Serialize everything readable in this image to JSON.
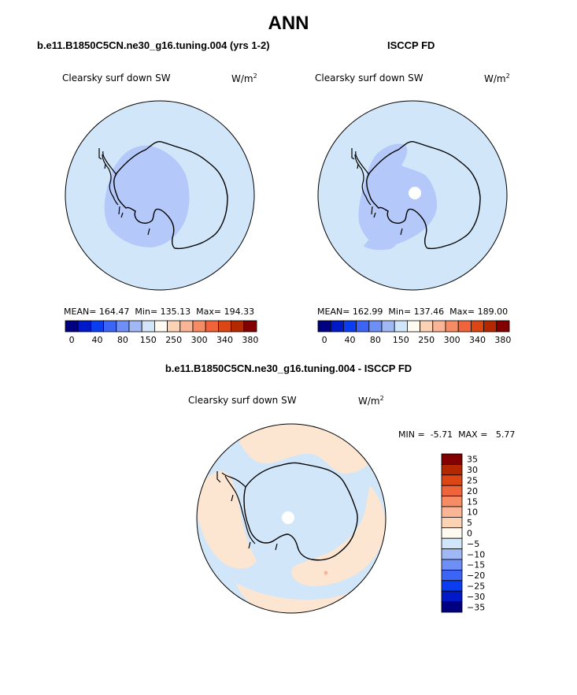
{
  "title": "ANN",
  "panels": [
    {
      "case_name": "b.e11.B1850C5CN.ne30_g16.tuning.004 (yrs 1-2)",
      "variable": "Clearsky surf down SW",
      "units": "W/m",
      "units_exp": "2",
      "stats": {
        "mean_label": "MEAN=",
        "mean": "164.47",
        "min_label": "Min=",
        "min": "135.13",
        "max_label": "Max=",
        "max": "194.33"
      },
      "pole_hole": false
    },
    {
      "case_name": "ISCCP FD",
      "variable": "Clearsky surf down SW",
      "units": "W/m",
      "units_exp": "2",
      "stats": {
        "mean_label": "MEAN=",
        "mean": "162.99",
        "min_label": "Min=",
        "min": "137.46",
        "max_label": "Max=",
        "max": "189.00"
      },
      "pole_hole": true
    }
  ],
  "diff_panel": {
    "case_name": "b.e11.B1850C5CN.ne30_g16.tuning.004 - ISCCP FD",
    "variable": "Clearsky surf down SW",
    "units": "W/m",
    "units_exp": "2",
    "stats": {
      "min_label": "MIN =",
      "min": "-5.71",
      "max_label": "MAX =",
      "max": "5.77"
    }
  },
  "chart_data": [
    {
      "type": "heatmap",
      "projection": "south-polar-stereographic",
      "field": "Clearsky surf down SW",
      "colorbar": {
        "orientation": "horizontal",
        "colors": [
          "#000080",
          "#0019c8",
          "#0a3cf0",
          "#3c64f5",
          "#6e8ff5",
          "#a0b9f5",
          "#d2e6fa",
          "#fffaf0",
          "#fcd2b4",
          "#fab496",
          "#f58c64",
          "#f0643c",
          "#dc4614",
          "#b42800",
          "#820000"
        ],
        "tick_labels": [
          "0",
          "40",
          "80",
          "150",
          "250",
          "300",
          "340",
          "380"
        ]
      },
      "stats": {
        "mean": 164.47,
        "min": 135.13,
        "max": 194.33
      }
    },
    {
      "type": "heatmap",
      "projection": "south-polar-stereographic",
      "field": "Clearsky surf down SW",
      "colorbar": {
        "orientation": "horizontal",
        "colors": [
          "#000080",
          "#0019c8",
          "#0a3cf0",
          "#3c64f5",
          "#6e8ff5",
          "#a0b9f5",
          "#d2e6fa",
          "#fffaf0",
          "#fcd2b4",
          "#fab496",
          "#f58c64",
          "#f0643c",
          "#dc4614",
          "#b42800",
          "#820000"
        ],
        "tick_labels": [
          "0",
          "40",
          "80",
          "150",
          "250",
          "300",
          "340",
          "380"
        ]
      },
      "stats": {
        "mean": 162.99,
        "min": 137.46,
        "max": 189.0
      }
    },
    {
      "type": "heatmap",
      "projection": "south-polar-stereographic",
      "field": "Clearsky surf down SW (difference)",
      "colorbar": {
        "orientation": "vertical",
        "colors_top_to_bottom": [
          "#820000",
          "#b42800",
          "#dc4614",
          "#f0643c",
          "#f58c64",
          "#fab496",
          "#fcd2b4",
          "#fffaf0",
          "#d2e6fa",
          "#a0b9f5",
          "#6e8ff5",
          "#3c64f5",
          "#0a3cf0",
          "#0019c8",
          "#000080"
        ],
        "tick_labels_top_to_bottom": [
          "35",
          "30",
          "25",
          "20",
          "15",
          "10",
          "5",
          "0",
          "−5",
          "−10",
          "−15",
          "−20",
          "−25",
          "−30",
          "−35"
        ]
      },
      "stats": {
        "min": -5.71,
        "max": 5.77
      }
    }
  ]
}
